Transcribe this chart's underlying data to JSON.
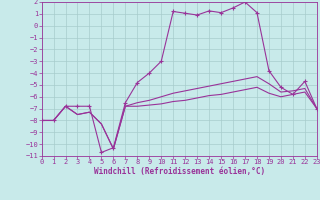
{
  "xlabel": "Windchill (Refroidissement éolien,°C)",
  "xlim": [
    0,
    23
  ],
  "ylim": [
    -11,
    2
  ],
  "yticks": [
    2,
    1,
    0,
    -1,
    -2,
    -3,
    -4,
    -5,
    -6,
    -7,
    -8,
    -9,
    -10,
    -11
  ],
  "xticks": [
    0,
    1,
    2,
    3,
    4,
    5,
    6,
    7,
    8,
    9,
    10,
    11,
    12,
    13,
    14,
    15,
    16,
    17,
    18,
    19,
    20,
    21,
    22,
    23
  ],
  "bg_color": "#c8eaea",
  "grid_color": "#a8cccc",
  "line_color": "#993399",
  "line1_x": [
    0,
    1,
    2,
    3,
    4,
    5,
    6,
    7,
    8,
    9,
    10,
    11,
    12,
    13,
    14,
    15,
    16,
    17,
    18,
    19,
    20,
    21,
    22,
    23
  ],
  "line1_y": [
    -8,
    -8,
    -6.8,
    -6.8,
    -6.8,
    -10.7,
    -10.3,
    -6.5,
    -4.8,
    -4.0,
    -3.0,
    1.2,
    1.05,
    0.9,
    1.25,
    1.1,
    1.5,
    2.0,
    1.1,
    -3.8,
    -5.2,
    -5.8,
    -4.7,
    -7.0
  ],
  "line2_x": [
    0,
    1,
    2,
    3,
    4,
    5,
    6,
    7,
    8,
    9,
    10,
    11,
    12,
    13,
    14,
    15,
    16,
    17,
    18,
    19,
    20,
    21,
    22,
    23
  ],
  "line2_y": [
    -8,
    -8,
    -6.8,
    -7.5,
    -7.3,
    -8.3,
    -10.4,
    -6.8,
    -6.5,
    -6.3,
    -6.0,
    -5.7,
    -5.5,
    -5.3,
    -5.1,
    -4.9,
    -4.7,
    -4.5,
    -4.3,
    -4.9,
    -5.6,
    -5.5,
    -5.3,
    -7.0
  ],
  "line3_x": [
    0,
    1,
    2,
    3,
    4,
    5,
    6,
    7,
    8,
    9,
    10,
    11,
    12,
    13,
    14,
    15,
    16,
    17,
    18,
    19,
    20,
    21,
    22,
    23
  ],
  "line3_y": [
    -8,
    -8,
    -6.8,
    -7.5,
    -7.3,
    -8.3,
    -10.4,
    -6.8,
    -6.8,
    -6.7,
    -6.6,
    -6.4,
    -6.3,
    -6.1,
    -5.9,
    -5.8,
    -5.6,
    -5.4,
    -5.2,
    -5.7,
    -6.0,
    -5.8,
    -5.6,
    -7.0
  ]
}
